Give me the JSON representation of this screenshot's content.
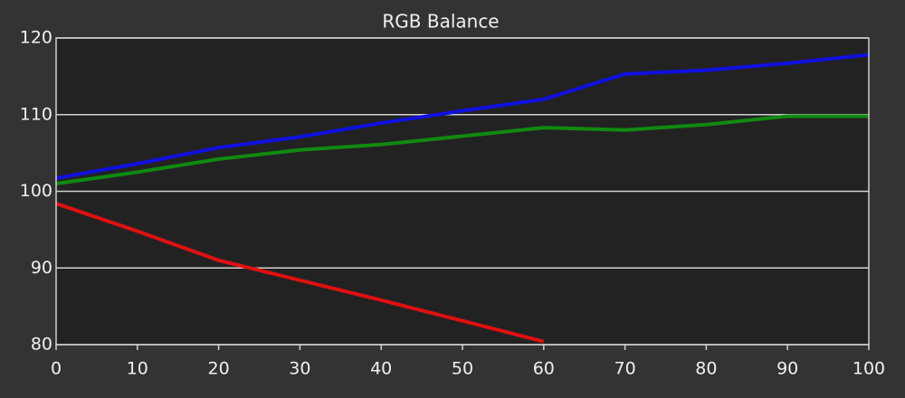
{
  "chart_data": {
    "type": "line",
    "title": "RGB Balance",
    "x": [
      0,
      10,
      20,
      30,
      40,
      50,
      60,
      70,
      80,
      90,
      100
    ],
    "series": [
      {
        "name": "Red",
        "color": "#e01010",
        "values": [
          98.4,
          94.8,
          91.0,
          88.4,
          85.8,
          83.1,
          80.4,
          null,
          null,
          null,
          null
        ]
      },
      {
        "name": "Green",
        "color": "#108a10",
        "values": [
          101.0,
          102.5,
          104.2,
          105.4,
          106.1,
          107.2,
          108.3,
          108.0,
          108.7,
          109.8,
          109.8
        ]
      },
      {
        "name": "Blue",
        "color": "#1010e0",
        "values": [
          101.7,
          103.6,
          105.7,
          107.1,
          108.9,
          110.5,
          112.0,
          115.3,
          115.8,
          116.7,
          117.8
        ]
      }
    ],
    "xlim": [
      0,
      100
    ],
    "xticks": [
      0,
      10,
      20,
      30,
      40,
      50,
      60,
      70,
      80,
      90,
      100
    ],
    "ylim": [
      80,
      120
    ],
    "yticks": [
      80,
      90,
      100,
      110,
      120
    ],
    "grid": true
  }
}
